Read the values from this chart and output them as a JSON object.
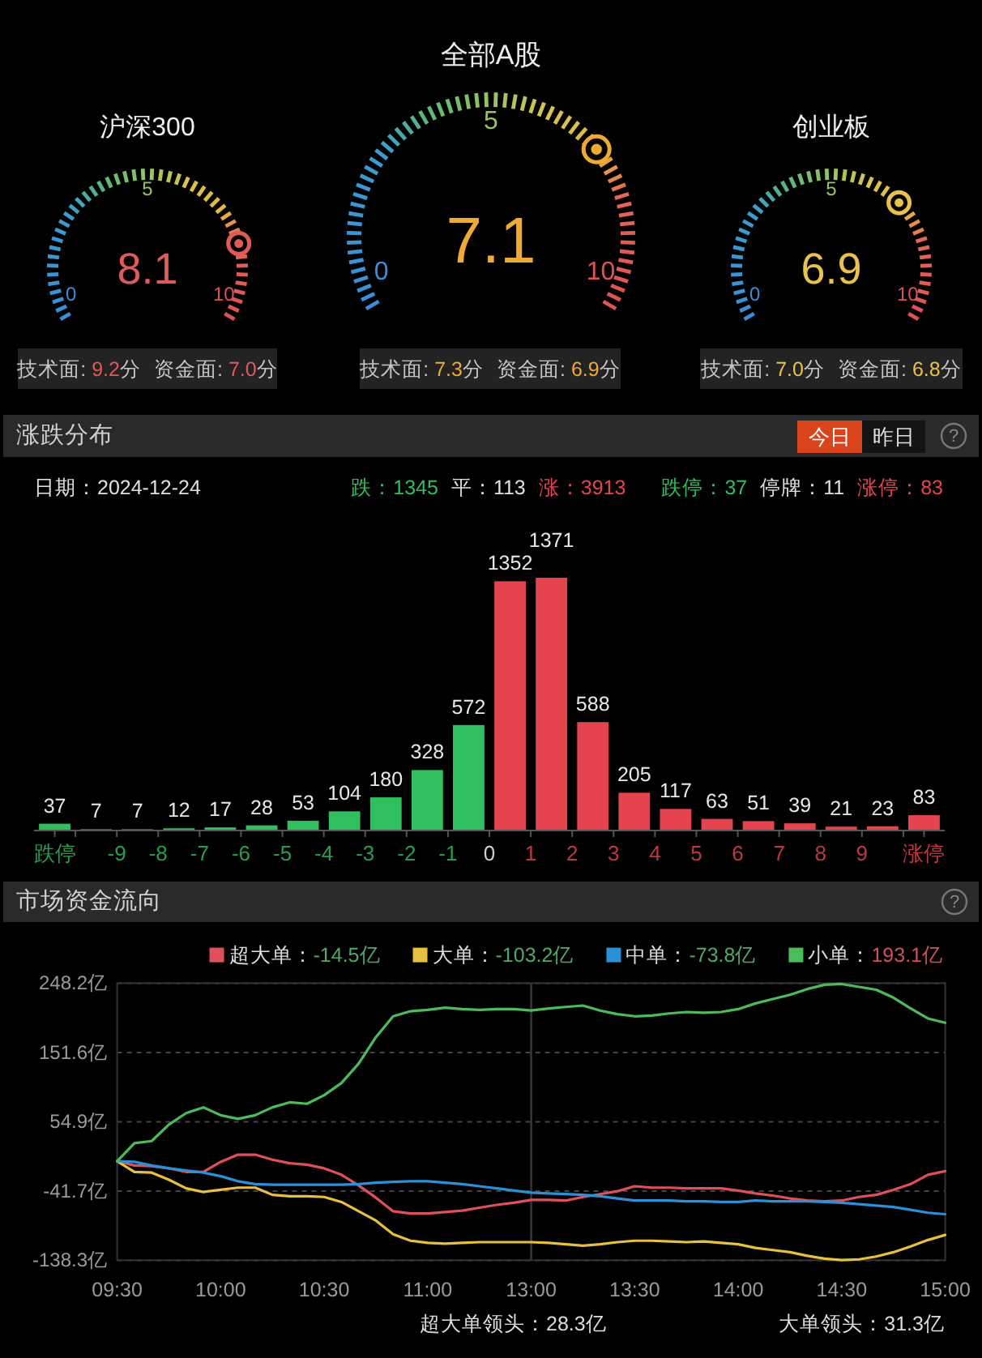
{
  "chart_data": [
    {
      "type": "other",
      "title": "沪深300",
      "values": [
        8.1
      ],
      "data_labels": true,
      "color": "#e05a5a",
      "annotations": [
        "技术面: 9.2分",
        "资金面: 7.0分",
        "0",
        "5",
        "10"
      ]
    },
    {
      "type": "other",
      "title": "全部A股",
      "values": [
        7.1
      ],
      "data_labels": true,
      "color": "#f0aa34",
      "annotations": [
        "技术面: 7.3分",
        "资金面: 6.9分",
        "0",
        "5",
        "10"
      ]
    },
    {
      "type": "other",
      "title": "创业板",
      "values": [
        6.9
      ],
      "data_labels": true,
      "color": "#e8c24a",
      "annotations": [
        "技术面: 7.0分",
        "资金面: 6.8分",
        "0",
        "5",
        "10"
      ]
    },
    {
      "type": "bar",
      "title": "涨跌分布",
      "subtitle": "日期：2024-12-24",
      "x": [
        -10.5,
        -9.5,
        -8.5,
        -7.5,
        -6.5,
        -5.5,
        -4.5,
        -3.5,
        -2.5,
        -1.5,
        -0.5,
        0.5,
        1.5,
        2.5,
        3.5,
        4.5,
        5.5,
        6.5,
        7.5,
        8.5,
        9.5,
        10.5
      ],
      "values": [
        37,
        7,
        7,
        12,
        17,
        28,
        53,
        104,
        180,
        328,
        572,
        1352,
        1371,
        588,
        205,
        117,
        63,
        51,
        39,
        21,
        23,
        83
      ],
      "colors": [
        "#2fbf5f",
        "#2fbf5f",
        "#2fbf5f",
        "#2fbf5f",
        "#2fbf5f",
        "#2fbf5f",
        "#2fbf5f",
        "#2fbf5f",
        "#2fbf5f",
        "#2fbf5f",
        "#2fbf5f",
        "#e5444f",
        "#e5444f",
        "#e5444f",
        "#e5444f",
        "#e5444f",
        "#e5444f",
        "#e5444f",
        "#e5444f",
        "#e5444f",
        "#e5444f",
        "#e5444f"
      ],
      "xlim": [
        -11,
        11
      ],
      "xticks": [
        {
          "value": -10.5,
          "label": "跌停"
        },
        {
          "value": -10,
          "label": null
        },
        -9,
        -8,
        -7,
        -6,
        -5,
        -4,
        -3,
        -2,
        -1,
        0,
        1,
        2,
        3,
        4,
        5,
        6,
        7,
        8,
        9,
        {
          "value": 10,
          "label": null
        },
        {
          "value": 10.5,
          "label": "涨停"
        }
      ],
      "data_labels": true,
      "annotations": [
        "跌：1345",
        "平：113",
        "涨：3913",
        "跌停：37",
        "停牌：11",
        "涨停：83",
        "今日",
        "昨日",
        "?"
      ]
    },
    {
      "type": "line",
      "title": "市场资金流向",
      "categories": [
        "09:30",
        null,
        null,
        null,
        null,
        null,
        "10:00",
        null,
        null,
        null,
        null,
        null,
        "10:30",
        null,
        null,
        null,
        null,
        null,
        "11:00",
        null,
        null,
        null,
        null,
        null,
        "13:00",
        null,
        null,
        null,
        null,
        null,
        "13:30",
        null,
        null,
        null,
        null,
        null,
        "14:00",
        null,
        null,
        null,
        null,
        null,
        "14:30",
        null,
        null,
        null,
        null,
        null,
        "15:00"
      ],
      "series": [
        {
          "name": "超大单：-14.5亿",
          "color": "#e0505a",
          "values": [
            0,
            -6,
            -7,
            -10,
            -15,
            -15,
            -1,
            9,
            9,
            2,
            -3,
            -5,
            -10,
            -19,
            -34,
            -51,
            -70,
            -73,
            -73,
            -71,
            -69,
            -65,
            -61,
            -58,
            -54,
            -54,
            -55,
            -50,
            -46,
            -42,
            -35,
            -37,
            -37,
            -38,
            -38,
            -38,
            -41,
            -45,
            -48,
            -52,
            -55,
            -56,
            -55,
            -50,
            -47,
            -40,
            -32,
            -19,
            -14
          ]
        },
        {
          "name": "大单：-103.2亿",
          "color": "#e8c040",
          "values": [
            0,
            -15,
            -16,
            -26,
            -38,
            -43,
            -40,
            -37,
            -37,
            -47,
            -49,
            -49,
            -50,
            -57,
            -70,
            -83,
            -102,
            -111,
            -114,
            -115,
            -114,
            -113,
            -113,
            -113,
            -113,
            -114,
            -116,
            -118,
            -116,
            -113,
            -111,
            -111,
            -112,
            -113,
            -112,
            -114,
            -116,
            -121,
            -124,
            -127,
            -132,
            -136,
            -138,
            -137,
            -133,
            -127,
            -119,
            -110,
            -103
          ]
        },
        {
          "name": "中单：-73.8亿",
          "color": "#2a90d8",
          "values": [
            0,
            -1,
            -6,
            -10,
            -13,
            -16,
            -21,
            -28,
            -32,
            -33,
            -33,
            -33,
            -33,
            -33,
            -32,
            -30,
            -29,
            -28,
            -28,
            -30,
            -32,
            -35,
            -38,
            -41,
            -44,
            -45,
            -46,
            -47,
            -49,
            -52,
            -55,
            -55,
            -55,
            -56,
            -56,
            -57,
            -57,
            -55,
            -56,
            -56,
            -56,
            -57,
            -58,
            -60,
            -62,
            -64,
            -68,
            -72,
            -74
          ]
        },
        {
          "name": "小单：193.1亿",
          "color": "#4cbb5c",
          "values": [
            0,
            25,
            28,
            51,
            67,
            75,
            64,
            59,
            64,
            75,
            82,
            80,
            92,
            109,
            136,
            173,
            202,
            209,
            211,
            214,
            212,
            211,
            212,
            212,
            210,
            213,
            215,
            217,
            210,
            205,
            202,
            203,
            206,
            208,
            207,
            208,
            212,
            220,
            226,
            232,
            240,
            246,
            247,
            243,
            239,
            228,
            213,
            199,
            193
          ]
        }
      ],
      "ylim": [
        -138.3,
        248.2
      ],
      "yticks": [
        {
          "value": -138.3,
          "label": "-138.3亿"
        },
        {
          "value": -41.7,
          "label": "-41.7亿"
        },
        {
          "value": 54.9,
          "label": "54.9亿"
        },
        {
          "value": 151.6,
          "label": "151.6亿"
        },
        {
          "value": 248.2,
          "label": "248.2亿"
        }
      ],
      "grid": "y",
      "legend": "top",
      "ref_lines": [
        {
          "axis": "x",
          "value": "13:00",
          "color": "#3a3a3a",
          "line_style": "solid"
        }
      ],
      "annotations": [
        "超大单领头：28.3亿",
        "大单领头：31.3亿",
        "?"
      ]
    }
  ]
}
